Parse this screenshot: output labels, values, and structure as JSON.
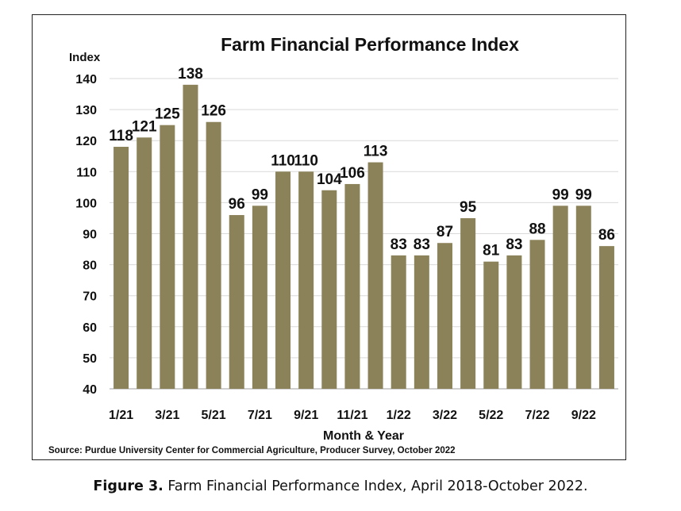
{
  "chart_data": {
    "type": "bar",
    "title": "Farm Financial Performance Index",
    "ylabel": "Index",
    "xlabel": "Month & Year",
    "ylim": [
      40,
      140
    ],
    "yticks": [
      40,
      50,
      60,
      70,
      80,
      90,
      100,
      110,
      120,
      130,
      140
    ],
    "grid": true,
    "categories": [
      "1/21",
      "2/21",
      "3/21",
      "4/21",
      "5/21",
      "6/21",
      "7/21",
      "8/21",
      "9/21",
      "10/21",
      "11/21",
      "12/21",
      "1/22",
      "2/22",
      "3/22",
      "4/22",
      "5/22",
      "6/22",
      "7/22",
      "8/22",
      "9/22",
      "10/22"
    ],
    "tick_labels": [
      "1/21",
      "",
      "3/21",
      "",
      "5/21",
      "",
      "7/21",
      "",
      "9/21",
      "",
      "11/21",
      "",
      "1/22",
      "",
      "3/22",
      "",
      "5/22",
      "",
      "7/22",
      "",
      "9/22",
      ""
    ],
    "values": [
      118,
      121,
      125,
      138,
      126,
      96,
      99,
      110,
      110,
      104,
      106,
      113,
      83,
      83,
      87,
      95,
      81,
      83,
      88,
      99,
      99,
      86
    ],
    "bar_color": "#8b8259",
    "source": "Source: Purdue University Center for Commercial Agriculture, Producer Survey, October 2022"
  },
  "caption": {
    "label": "Figure 3.",
    "text": " Farm Financial Performance Index, April 2018-October 2022."
  }
}
